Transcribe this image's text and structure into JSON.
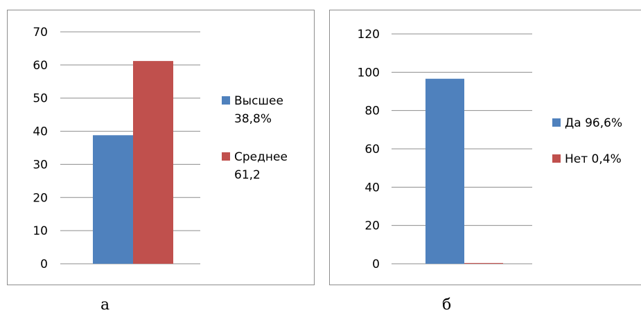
{
  "charts": [
    {
      "caption": "а",
      "legend": [
        {
          "lines": [
            "Высшее",
            "38,8%"
          ],
          "color": "#4F81BD"
        },
        {
          "lines": [
            "Среднее",
            "61,2"
          ],
          "color": "#C0504D"
        }
      ]
    },
    {
      "caption": "б",
      "legend": [
        {
          "lines": [
            "Да 96,6%"
          ],
          "color": "#4F81BD"
        },
        {
          "lines": [
            "Нет 0,4%"
          ],
          "color": "#C0504D"
        }
      ]
    }
  ],
  "chart_data": [
    {
      "type": "bar",
      "categories": [
        ""
      ],
      "series": [
        {
          "name": "Высшее 38,8%",
          "values": [
            38.8
          ],
          "color": "#4F81BD"
        },
        {
          "name": "Среднее 61,2",
          "values": [
            61.2
          ],
          "color": "#C0504D"
        }
      ],
      "yticks": [
        "0",
        "10",
        "20",
        "30",
        "40",
        "50",
        "60",
        "70"
      ],
      "ylim": [
        0,
        70
      ],
      "grid": true,
      "legend_position": "right"
    },
    {
      "type": "bar",
      "categories": [
        ""
      ],
      "series": [
        {
          "name": "Да 96,6%",
          "values": [
            96.6
          ],
          "color": "#4F81BD"
        },
        {
          "name": "Нет 0,4%",
          "values": [
            0.4
          ],
          "color": "#C0504D"
        }
      ],
      "yticks": [
        "0",
        "20",
        "40",
        "60",
        "80",
        "100",
        "120"
      ],
      "ylim": [
        0,
        120
      ],
      "grid": true,
      "legend_position": "right"
    }
  ]
}
